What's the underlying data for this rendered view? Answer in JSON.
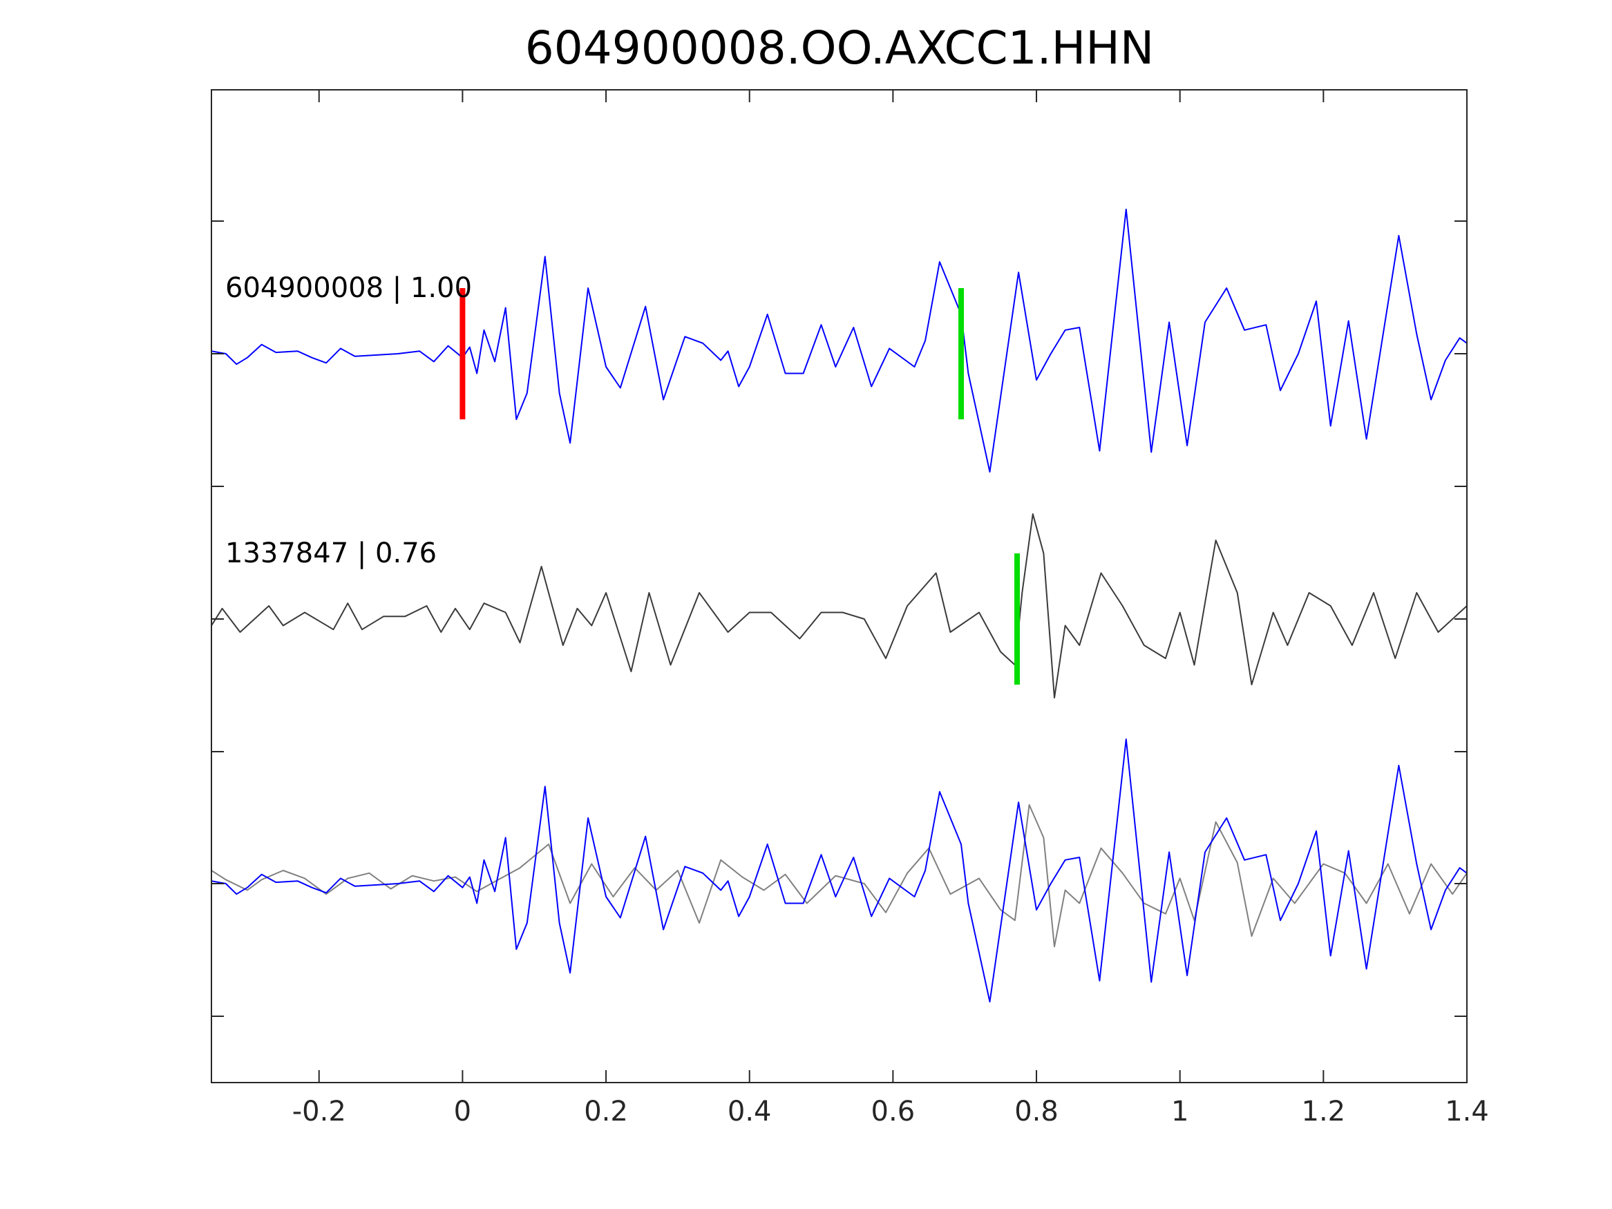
{
  "chart_data": {
    "type": "line",
    "title": "604900008.OO.AXCC1.HHN",
    "xlabel": "",
    "ylabel": "",
    "xlim": [
      -0.35,
      1.4
    ],
    "xticks": [
      -0.2,
      0,
      0.2,
      0.4,
      0.6,
      0.8,
      1,
      1.2,
      1.4
    ],
    "xtick_labels": [
      "-0.2",
      "0",
      "0.2",
      "0.4",
      "0.6",
      "0.8",
      "1",
      "1.2",
      "1.4"
    ],
    "grid": false,
    "colors": {
      "trace_blue": "#0000ff",
      "trace_black": "#3a3a3a",
      "overlay_gray": "#808080",
      "pick_red": "#ff0000",
      "pick_green": "#00dd00"
    },
    "traces": [
      {
        "label": "604900008 | 1.00",
        "color": "#0000ff",
        "points": [
          [
            -0.35,
            0.02
          ],
          [
            -0.33,
            0
          ],
          [
            -0.315,
            -0.08
          ],
          [
            -0.3,
            -0.03
          ],
          [
            -0.28,
            0.07
          ],
          [
            -0.26,
            0.01
          ],
          [
            -0.23,
            0.02
          ],
          [
            -0.21,
            -0.03
          ],
          [
            -0.19,
            -0.07
          ],
          [
            -0.17,
            0.04
          ],
          [
            -0.15,
            -0.02
          ],
          [
            -0.12,
            -0.01
          ],
          [
            -0.09,
            0
          ],
          [
            -0.06,
            0.02
          ],
          [
            -0.04,
            -0.06
          ],
          [
            -0.02,
            0.06
          ],
          [
            0,
            -0.03
          ],
          [
            0.01,
            0.05
          ],
          [
            0.02,
            -0.15
          ],
          [
            0.03,
            0.18
          ],
          [
            0.045,
            -0.06
          ],
          [
            0.06,
            0.35
          ],
          [
            0.075,
            -0.5
          ],
          [
            0.09,
            -0.3
          ],
          [
            0.115,
            0.74
          ],
          [
            0.135,
            -0.3
          ],
          [
            0.15,
            -0.68
          ],
          [
            0.175,
            0.5
          ],
          [
            0.2,
            -0.1
          ],
          [
            0.22,
            -0.26
          ],
          [
            0.255,
            0.36
          ],
          [
            0.28,
            -0.35
          ],
          [
            0.31,
            0.13
          ],
          [
            0.335,
            0.08
          ],
          [
            0.36,
            -0.05
          ],
          [
            0.37,
            0.02
          ],
          [
            0.385,
            -0.25
          ],
          [
            0.4,
            -0.1
          ],
          [
            0.425,
            0.3
          ],
          [
            0.45,
            -0.15
          ],
          [
            0.475,
            -0.15
          ],
          [
            0.5,
            0.22
          ],
          [
            0.52,
            -0.1
          ],
          [
            0.545,
            0.2
          ],
          [
            0.57,
            -0.25
          ],
          [
            0.595,
            0.04
          ],
          [
            0.63,
            -0.1
          ],
          [
            0.645,
            0.1
          ],
          [
            0.665,
            0.7
          ],
          [
            0.695,
            0.3
          ],
          [
            0.705,
            -0.15
          ],
          [
            0.735,
            -0.9
          ],
          [
            0.775,
            0.62
          ],
          [
            0.8,
            -0.2
          ],
          [
            0.82,
            0
          ],
          [
            0.84,
            0.18
          ],
          [
            0.86,
            0.2
          ],
          [
            0.888,
            -0.74
          ],
          [
            0.925,
            1.1
          ],
          [
            0.96,
            -0.75
          ],
          [
            0.985,
            0.24
          ],
          [
            1.01,
            -0.7
          ],
          [
            1.035,
            0.24
          ],
          [
            1.065,
            0.5
          ],
          [
            1.09,
            0.18
          ],
          [
            1.12,
            0.22
          ],
          [
            1.14,
            -0.28
          ],
          [
            1.165,
            0
          ],
          [
            1.19,
            0.4
          ],
          [
            1.21,
            -0.55
          ],
          [
            1.235,
            0.25
          ],
          [
            1.26,
            -0.65
          ],
          [
            1.305,
            0.9
          ],
          [
            1.33,
            0.15
          ],
          [
            1.35,
            -0.35
          ],
          [
            1.37,
            -0.05
          ],
          [
            1.39,
            0.12
          ],
          [
            1.4,
            0.08
          ]
        ]
      },
      {
        "label": "1337847 | 0.76",
        "color": "#3a3a3a",
        "points": [
          [
            -0.35,
            -0.05
          ],
          [
            -0.335,
            0.08
          ],
          [
            -0.31,
            -0.1
          ],
          [
            -0.27,
            0.1
          ],
          [
            -0.25,
            -0.05
          ],
          [
            -0.22,
            0.05
          ],
          [
            -0.18,
            -0.08
          ],
          [
            -0.16,
            0.12
          ],
          [
            -0.14,
            -0.08
          ],
          [
            -0.11,
            0.02
          ],
          [
            -0.08,
            0.02
          ],
          [
            -0.05,
            0.1
          ],
          [
            -0.03,
            -0.1
          ],
          [
            -0.01,
            0.08
          ],
          [
            0.01,
            -0.08
          ],
          [
            0.03,
            0.12
          ],
          [
            0.06,
            0.05
          ],
          [
            0.08,
            -0.18
          ],
          [
            0.11,
            0.4
          ],
          [
            0.14,
            -0.2
          ],
          [
            0.16,
            0.08
          ],
          [
            0.18,
            -0.05
          ],
          [
            0.2,
            0.2
          ],
          [
            0.235,
            -0.4
          ],
          [
            0.26,
            0.2
          ],
          [
            0.29,
            -0.35
          ],
          [
            0.33,
            0.2
          ],
          [
            0.37,
            -0.1
          ],
          [
            0.4,
            0.05
          ],
          [
            0.43,
            0.05
          ],
          [
            0.47,
            -0.15
          ],
          [
            0.5,
            0.05
          ],
          [
            0.53,
            0.05
          ],
          [
            0.56,
            0
          ],
          [
            0.59,
            -0.3
          ],
          [
            0.62,
            0.1
          ],
          [
            0.66,
            0.35
          ],
          [
            0.68,
            -0.1
          ],
          [
            0.72,
            0.05
          ],
          [
            0.75,
            -0.25
          ],
          [
            0.77,
            -0.35
          ],
          [
            0.78,
            0.2
          ],
          [
            0.795,
            0.8
          ],
          [
            0.81,
            0.5
          ],
          [
            0.825,
            -0.6
          ],
          [
            0.84,
            -0.05
          ],
          [
            0.86,
            -0.2
          ],
          [
            0.89,
            0.35
          ],
          [
            0.92,
            0.1
          ],
          [
            0.95,
            -0.2
          ],
          [
            0.98,
            -0.3
          ],
          [
            1,
            0.05
          ],
          [
            1.02,
            -0.35
          ],
          [
            1.05,
            0.6
          ],
          [
            1.08,
            0.2
          ],
          [
            1.1,
            -0.5
          ],
          [
            1.13,
            0.05
          ],
          [
            1.15,
            -0.2
          ],
          [
            1.18,
            0.2
          ],
          [
            1.21,
            0.1
          ],
          [
            1.24,
            -0.2
          ],
          [
            1.27,
            0.2
          ],
          [
            1.3,
            -0.3
          ],
          [
            1.33,
            0.2
          ],
          [
            1.36,
            -0.1
          ],
          [
            1.39,
            0.05
          ],
          [
            1.4,
            0.1
          ]
        ]
      },
      {
        "label": "",
        "color": "#808080",
        "overlay": true,
        "points": [
          [
            -0.35,
            0.1
          ],
          [
            -0.33,
            0.03
          ],
          [
            -0.3,
            -0.05
          ],
          [
            -0.28,
            0.03
          ],
          [
            -0.25,
            0.1
          ],
          [
            -0.22,
            0.04
          ],
          [
            -0.19,
            -0.08
          ],
          [
            -0.16,
            0.04
          ],
          [
            -0.13,
            0.08
          ],
          [
            -0.1,
            -0.04
          ],
          [
            -0.07,
            0.06
          ],
          [
            -0.04,
            0.02
          ],
          [
            -0.01,
            0.05
          ],
          [
            0.02,
            -0.06
          ],
          [
            0.05,
            0.03
          ],
          [
            0.08,
            0.12
          ],
          [
            0.12,
            0.3
          ],
          [
            0.15,
            -0.15
          ],
          [
            0.18,
            0.15
          ],
          [
            0.21,
            -0.1
          ],
          [
            0.24,
            0.12
          ],
          [
            0.27,
            -0.05
          ],
          [
            0.3,
            0.1
          ],
          [
            0.33,
            -0.3
          ],
          [
            0.36,
            0.18
          ],
          [
            0.39,
            0.05
          ],
          [
            0.42,
            -0.05
          ],
          [
            0.45,
            0.07
          ],
          [
            0.48,
            -0.15
          ],
          [
            0.52,
            0.06
          ],
          [
            0.56,
            0
          ],
          [
            0.59,
            -0.22
          ],
          [
            0.62,
            0.08
          ],
          [
            0.65,
            0.27
          ],
          [
            0.68,
            -0.08
          ],
          [
            0.72,
            0.04
          ],
          [
            0.75,
            -0.2
          ],
          [
            0.77,
            -0.28
          ],
          [
            0.79,
            0.6
          ],
          [
            0.81,
            0.35
          ],
          [
            0.825,
            -0.48
          ],
          [
            0.84,
            -0.05
          ],
          [
            0.86,
            -0.15
          ],
          [
            0.89,
            0.27
          ],
          [
            0.92,
            0.08
          ],
          [
            0.95,
            -0.15
          ],
          [
            0.98,
            -0.23
          ],
          [
            1,
            0.04
          ],
          [
            1.02,
            -0.28
          ],
          [
            1.05,
            0.47
          ],
          [
            1.08,
            0.16
          ],
          [
            1.1,
            -0.4
          ],
          [
            1.13,
            0.04
          ],
          [
            1.16,
            -0.15
          ],
          [
            1.2,
            0.15
          ],
          [
            1.23,
            0.08
          ],
          [
            1.26,
            -0.15
          ],
          [
            1.29,
            0.15
          ],
          [
            1.32,
            -0.23
          ],
          [
            1.35,
            0.15
          ],
          [
            1.38,
            -0.08
          ],
          [
            1.4,
            0.08
          ]
        ]
      },
      {
        "label": "",
        "color": "#0000ff",
        "overlay": true,
        "points": [
          [
            -0.35,
            0.02
          ],
          [
            -0.33,
            0
          ],
          [
            -0.315,
            -0.08
          ],
          [
            -0.3,
            -0.03
          ],
          [
            -0.28,
            0.07
          ],
          [
            -0.26,
            0.01
          ],
          [
            -0.23,
            0.02
          ],
          [
            -0.21,
            -0.03
          ],
          [
            -0.19,
            -0.07
          ],
          [
            -0.17,
            0.04
          ],
          [
            -0.15,
            -0.02
          ],
          [
            -0.12,
            -0.01
          ],
          [
            -0.09,
            0
          ],
          [
            -0.06,
            0.02
          ],
          [
            -0.04,
            -0.06
          ],
          [
            -0.02,
            0.06
          ],
          [
            0,
            -0.03
          ],
          [
            0.01,
            0.05
          ],
          [
            0.02,
            -0.15
          ],
          [
            0.03,
            0.18
          ],
          [
            0.045,
            -0.06
          ],
          [
            0.06,
            0.35
          ],
          [
            0.075,
            -0.5
          ],
          [
            0.09,
            -0.3
          ],
          [
            0.115,
            0.74
          ],
          [
            0.135,
            -0.3
          ],
          [
            0.15,
            -0.68
          ],
          [
            0.175,
            0.5
          ],
          [
            0.2,
            -0.1
          ],
          [
            0.22,
            -0.26
          ],
          [
            0.255,
            0.36
          ],
          [
            0.28,
            -0.35
          ],
          [
            0.31,
            0.13
          ],
          [
            0.335,
            0.08
          ],
          [
            0.36,
            -0.05
          ],
          [
            0.37,
            0.02
          ],
          [
            0.385,
            -0.25
          ],
          [
            0.4,
            -0.1
          ],
          [
            0.425,
            0.3
          ],
          [
            0.45,
            -0.15
          ],
          [
            0.475,
            -0.15
          ],
          [
            0.5,
            0.22
          ],
          [
            0.52,
            -0.1
          ],
          [
            0.545,
            0.2
          ],
          [
            0.57,
            -0.25
          ],
          [
            0.595,
            0.04
          ],
          [
            0.63,
            -0.1
          ],
          [
            0.645,
            0.1
          ],
          [
            0.665,
            0.7
          ],
          [
            0.695,
            0.3
          ],
          [
            0.705,
            -0.15
          ],
          [
            0.735,
            -0.9
          ],
          [
            0.775,
            0.62
          ],
          [
            0.8,
            -0.2
          ],
          [
            0.82,
            0
          ],
          [
            0.84,
            0.18
          ],
          [
            0.86,
            0.2
          ],
          [
            0.888,
            -0.74
          ],
          [
            0.925,
            1.1
          ],
          [
            0.96,
            -0.75
          ],
          [
            0.985,
            0.24
          ],
          [
            1.01,
            -0.7
          ],
          [
            1.035,
            0.24
          ],
          [
            1.065,
            0.5
          ],
          [
            1.09,
            0.18
          ],
          [
            1.12,
            0.22
          ],
          [
            1.14,
            -0.28
          ],
          [
            1.165,
            0
          ],
          [
            1.19,
            0.4
          ],
          [
            1.21,
            -0.55
          ],
          [
            1.235,
            0.25
          ],
          [
            1.26,
            -0.65
          ],
          [
            1.305,
            0.9
          ],
          [
            1.33,
            0.15
          ],
          [
            1.35,
            -0.35
          ],
          [
            1.37,
            -0.05
          ],
          [
            1.39,
            0.12
          ],
          [
            1.4,
            0.08
          ]
        ]
      }
    ],
    "picks": [
      {
        "trace": 0,
        "x": 0,
        "color": "#ff0000",
        "kind": "red"
      },
      {
        "trace": 0,
        "x": 0.695,
        "color": "#00dd00",
        "kind": "green"
      },
      {
        "trace": 1,
        "x": 0.773,
        "color": "#00dd00",
        "kind": "green"
      }
    ]
  }
}
